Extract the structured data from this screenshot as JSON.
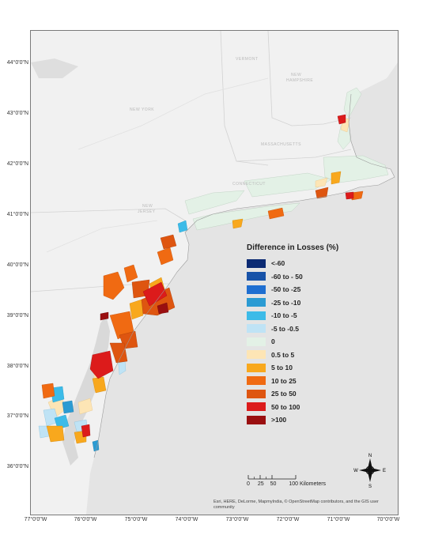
{
  "legend": {
    "title": "Difference in Losses (%)",
    "items": [
      {
        "label": "<-60",
        "color": "#0b2a73"
      },
      {
        "label": "-60 to - 50",
        "color": "#1752a8"
      },
      {
        "label": "-50 to -25",
        "color": "#1f6fd1"
      },
      {
        "label": "-25 to -10",
        "color": "#2b9bd3"
      },
      {
        "label": "-10 to -5",
        "color": "#3cbbe8"
      },
      {
        "label": "-5 to -0.5",
        "color": "#bfe3f5"
      },
      {
        "label": "0",
        "color": "#e3f1e6"
      },
      {
        "label": "0.5 to 5",
        "color": "#fde5b5"
      },
      {
        "label": "5 to 10",
        "color": "#f8a81d"
      },
      {
        "label": "10 to 25",
        "color": "#f06a12"
      },
      {
        "label": "25 to 50",
        "color": "#de5510"
      },
      {
        "label": "50 to 100",
        "color": "#dc1b1b"
      },
      {
        "label": ">100",
        "color": "#9a0f10"
      }
    ]
  },
  "latitude_labels": [
    "44°0'0\"N",
    "43°0'0\"N",
    "42°0'0\"N",
    "41°0'0\"N",
    "40°0'0\"N",
    "39°0'0\"N",
    "38°0'0\"N",
    "37°0'0\"N",
    "36°0'0\"N"
  ],
  "longitude_labels": [
    "77°0'0\"W",
    "76°0'0\"W",
    "75°0'0\"W",
    "74°0'0\"W",
    "73°0'0\"W",
    "72°0'0\"W",
    "71°0'0\"W",
    "70°0'0\"W"
  ],
  "state_labels": {
    "vermont": "VERMONT",
    "new_hampshire_1": "NEW",
    "new_hampshire_2": "HAMPSHIRE",
    "new_york": "NEW YORK",
    "massachusetts": "MASSACHUSETTS",
    "connecticut": "CONNECTICUT",
    "new_jersey_1": "NEW",
    "new_jersey_2": "JERSEY"
  },
  "scale": {
    "ticks": [
      "0",
      "25",
      "50"
    ],
    "end_label": "100 Kilometers"
  },
  "compass": {
    "n": "N",
    "s": "S",
    "e": "E",
    "w": "W"
  },
  "attribution": "Esri, HERE, DeLorme, MapmyIndia, © OpenStreetMap contributors, and the GIS user community"
}
